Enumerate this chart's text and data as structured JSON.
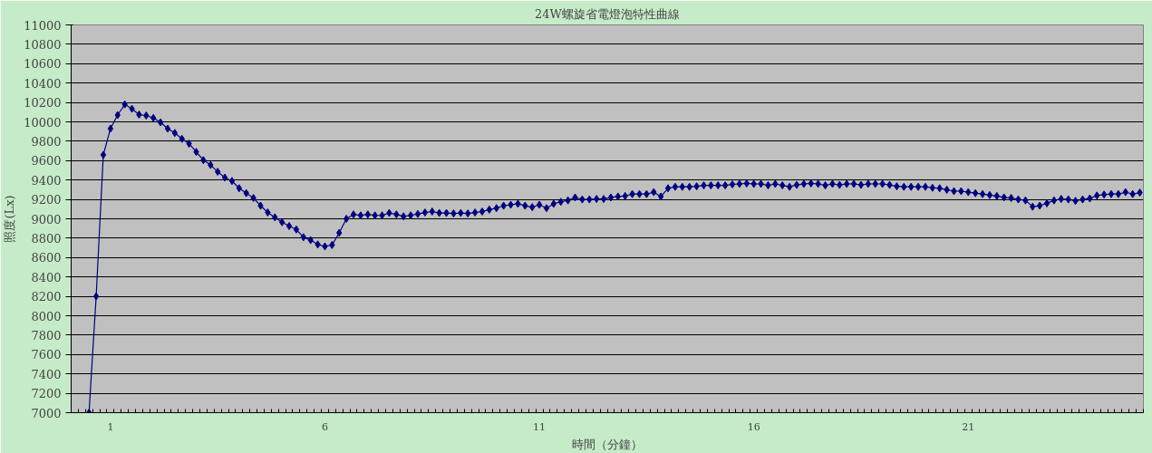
{
  "chart_data": {
    "type": "line",
    "title": "24W螺旋省電燈泡特性曲線",
    "xlabel": "時間（分鐘）",
    "ylabel": "照度(Lx)",
    "categories": [
      null,
      null,
      null,
      null,
      null,
      "1",
      null,
      null,
      null,
      null,
      null,
      null,
      null,
      null,
      null,
      null,
      null,
      null,
      null,
      null,
      null,
      null,
      null,
      null,
      null,
      null,
      null,
      null,
      null,
      null,
      null,
      null,
      null,
      null,
      null,
      "6",
      null,
      null,
      null,
      null,
      null,
      null,
      null,
      null,
      null,
      null,
      null,
      null,
      null,
      null,
      null,
      null,
      null,
      null,
      null,
      null,
      null,
      null,
      null,
      null,
      null,
      null,
      null,
      null,
      null,
      "11",
      null,
      null,
      null,
      null,
      null,
      null,
      null,
      null,
      null,
      null,
      null,
      null,
      null,
      null,
      null,
      null,
      null,
      null,
      null,
      null,
      null,
      null,
      null,
      null,
      null,
      null,
      null,
      null,
      null,
      "16",
      null,
      null,
      null,
      null,
      null,
      null,
      null,
      null,
      null,
      null,
      null,
      null,
      null,
      null,
      null,
      null,
      null,
      null,
      null,
      null,
      null,
      null,
      null,
      null,
      null,
      null,
      null,
      null,
      null,
      "21",
      null,
      null,
      null,
      null,
      null,
      null,
      null,
      null,
      null,
      null,
      null,
      null,
      null,
      null,
      null,
      null,
      null,
      null,
      null,
      null,
      null,
      null,
      null,
      null
    ],
    "series": [
      {
        "color": "#000080",
        "values": [
          null,
          null,
          7000,
          8200,
          9660,
          9930,
          10070,
          10180,
          10135,
          10075,
          10065,
          10040,
          9995,
          9930,
          9885,
          9825,
          9775,
          9690,
          9605,
          9555,
          9485,
          9425,
          9390,
          9315,
          9265,
          9215,
          9135,
          9065,
          9015,
          8965,
          8925,
          8890,
          8810,
          8780,
          8735,
          8715,
          8730,
          8855,
          9000,
          9045,
          9035,
          9045,
          9035,
          9035,
          9060,
          9045,
          9025,
          9035,
          9050,
          9065,
          9075,
          9060,
          9060,
          9055,
          9060,
          9055,
          9065,
          9075,
          9095,
          9110,
          9135,
          9145,
          9155,
          9135,
          9120,
          9145,
          9110,
          9155,
          9175,
          9190,
          9220,
          9200,
          9200,
          9205,
          9205,
          9220,
          9230,
          9235,
          9255,
          9255,
          9255,
          9275,
          9230,
          9315,
          9330,
          9330,
          9330,
          9335,
          9345,
          9345,
          9345,
          9345,
          9355,
          9360,
          9365,
          9360,
          9360,
          9345,
          9360,
          9345,
          9330,
          9350,
          9360,
          9365,
          9360,
          9345,
          9360,
          9350,
          9360,
          9360,
          9350,
          9360,
          9360,
          9360,
          9350,
          9335,
          9330,
          9330,
          9330,
          9330,
          9320,
          9315,
          9300,
          9285,
          9285,
          9275,
          9265,
          9255,
          9245,
          9235,
          9220,
          9215,
          9200,
          9190,
          9125,
          9135,
          9160,
          9190,
          9205,
          9200,
          9185,
          9200,
          9210,
          9240,
          9250,
          9255,
          9255,
          9275,
          9255,
          9270
        ]
      }
    ],
    "ylim": [
      7000,
      11000
    ],
    "yticks": [
      7000,
      7200,
      7400,
      7600,
      7800,
      8000,
      8200,
      8400,
      8600,
      8800,
      9000,
      9200,
      9400,
      9600,
      9800,
      10000,
      10200,
      10400,
      10600,
      10800,
      11000
    ],
    "grid": "y",
    "marker": "diamond",
    "line_style": "solid"
  }
}
